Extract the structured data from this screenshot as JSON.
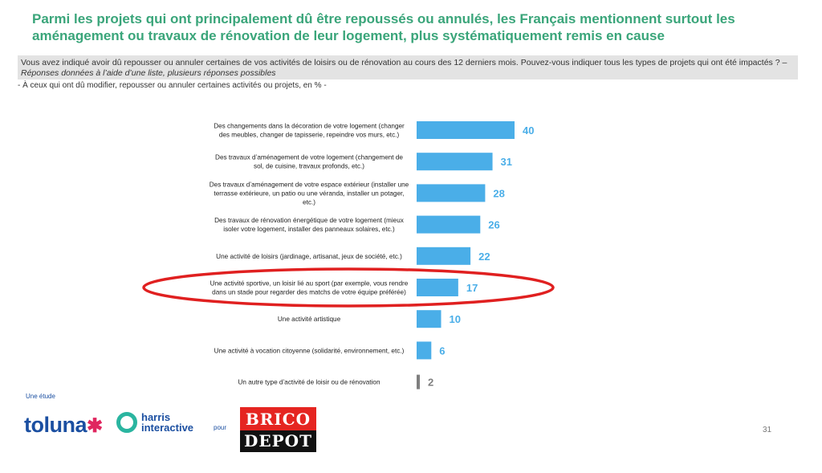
{
  "header": {
    "title": "Parmi les projets qui ont principalement dû être repoussés ou annulés, les Français mentionnent surtout les aménagement ou travaux de rénovation de leur logement, plus systématiquement remis en cause",
    "question": "Vous avez indiqué avoir dû repousser ou annuler certaines de vos activités de loisirs ou de rénovation au cours des 12 derniers mois. Pouvez-vous indiquer tous les types de projets qui ont été impactés ? –",
    "question_note": "Réponses données à l’aide d’une liste, plusieurs réponses possibles",
    "base": "- À ceux qui ont dû modifier, repousser ou annuler certaines activités ou projets, en % -"
  },
  "chart_data": {
    "type": "bar",
    "orientation": "horizontal",
    "categories": [
      "Des changements dans la décoration de votre logement (changer des meubles, changer de tapisserie, repeindre vos murs, etc.)",
      "Des travaux d’aménagement de votre logement (changement de sol, de cuisine, travaux profonds, etc.)",
      "Des travaux d’aménagement de votre espace extérieur (installer une terrasse extérieure, un patio ou une véranda, installer un potager, etc.)",
      "Des travaux de rénovation énergétique de votre logement (mieux isoler votre logement, installer des panneaux solaires, etc.)",
      "Une activité de loisirs (jardinage, artisanat, jeux de société, etc.)",
      "Une activité sportive, un loisir lié au sport (par exemple, vous rendre dans un stade pour regarder des matchs de votre équipe préférée)",
      "Une activité artistique",
      "Une activité à vocation citoyenne (solidarité, environnement, etc.)",
      "Un autre type d’activité de loisir ou de rénovation"
    ],
    "category_lines": [
      [
        "Des changements dans la décoration de votre logement (changer",
        "des meubles, changer de tapisserie, repeindre vos murs, etc.)"
      ],
      [
        "Des travaux d’aménagement de votre logement (changement de",
        "sol, de cuisine, travaux profonds, etc.)"
      ],
      [
        "Des travaux d’aménagement de votre espace extérieur (installer une",
        "terrasse extérieure, un patio ou une véranda, installer un potager,",
        "etc.)"
      ],
      [
        "Des travaux de rénovation énergétique de votre logement (mieux",
        "isoler votre logement, installer des panneaux solaires, etc.)"
      ],
      [
        "Une activité de loisirs (jardinage, artisanat, jeux de société, etc.)"
      ],
      [
        "Une activité sportive, un loisir lié au sport (par exemple, vous rendre",
        "dans un stade pour regarder des matchs de votre équipe préférée)"
      ],
      [
        "Une activité artistique"
      ],
      [
        "Une activité à vocation citoyenne (solidarité, environnement, etc.)"
      ],
      [
        "Un autre type d’activité de loisir ou de rénovation"
      ]
    ],
    "values": [
      40,
      31,
      28,
      26,
      22,
      17,
      10,
      6,
      2
    ],
    "unit": "%",
    "bar_colors": [
      "#4aaee8",
      "#4aaee8",
      "#4aaee8",
      "#4aaee8",
      "#4aaee8",
      "#4aaee8",
      "#4aaee8",
      "#4aaee8",
      "#7f7f7f"
    ],
    "value_label_colors": [
      "#4aaee8",
      "#4aaee8",
      "#4aaee8",
      "#4aaee8",
      "#4aaee8",
      "#4aaee8",
      "#4aaee8",
      "#4aaee8",
      "#7f7f7f"
    ],
    "highlighted_index": 5,
    "highlight_color": "#e02020",
    "grid": false,
    "legend": "none"
  },
  "footer": {
    "study": "Une étude",
    "toluna": "toluna",
    "harris_line1": "harris",
    "harris_line2": "interactive",
    "pour": "pour",
    "brico_line1": "BRICO",
    "brico_line2": "DEPOT",
    "page_number": "31"
  }
}
